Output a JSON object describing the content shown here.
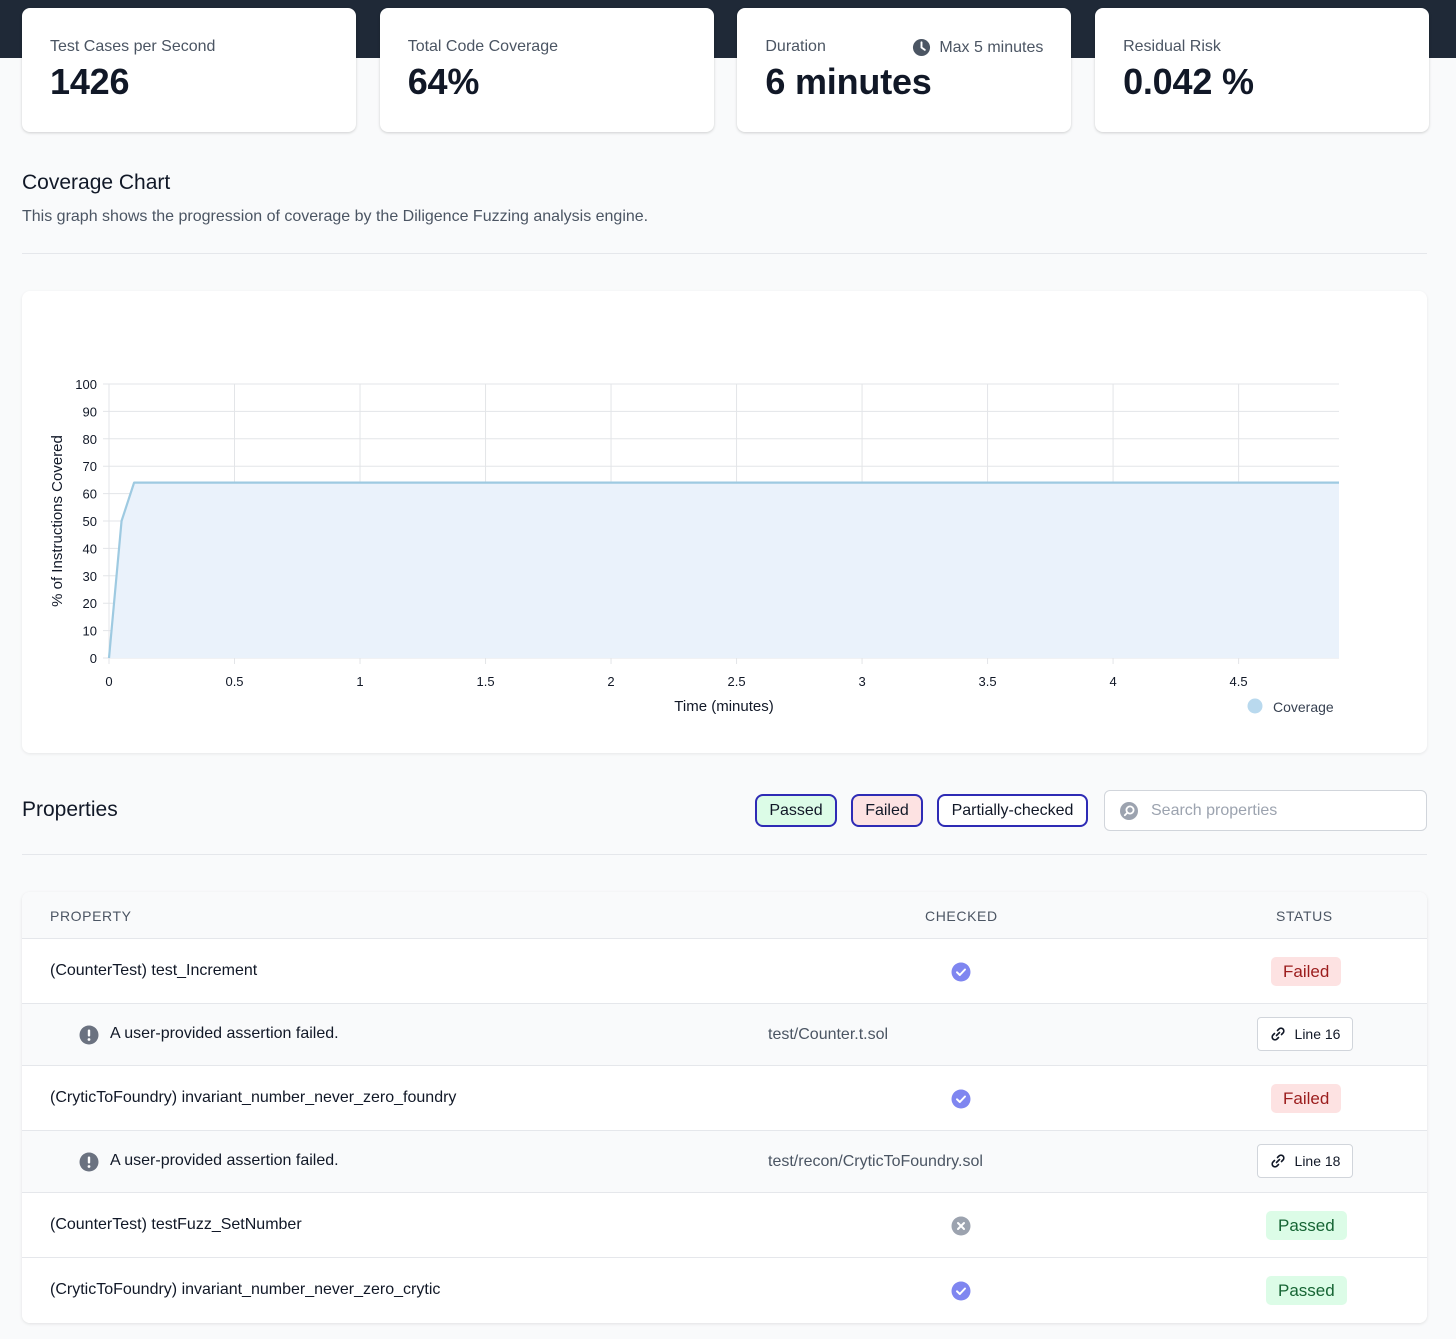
{
  "stats": [
    {
      "label": "Test Cases per Second",
      "value": "1426"
    },
    {
      "label": "Total Code Coverage",
      "value": "64%"
    },
    {
      "label": "Duration",
      "value": "6 minutes",
      "extra": "Max 5 minutes"
    },
    {
      "label": "Residual Risk",
      "value": "0.042 %"
    }
  ],
  "coverage": {
    "title": "Coverage Chart",
    "description": "This graph shows the progression of coverage by the Diligence Fuzzing analysis engine."
  },
  "chart_data": {
    "type": "area",
    "xlabel": "Time (minutes)",
    "ylabel": "% of Instructions Covered",
    "xlim": [
      0,
      4.9
    ],
    "ylim": [
      0,
      100
    ],
    "xticks": [
      0,
      0.5,
      1,
      1.5,
      2,
      2.5,
      3,
      3.5,
      4,
      4.5
    ],
    "yticks": [
      0,
      10,
      20,
      30,
      40,
      50,
      60,
      70,
      80,
      90,
      100
    ],
    "grid": true,
    "legend_position": "bottom-right",
    "series": [
      {
        "name": "Coverage",
        "color": "#9ecae1",
        "fill": "#eaf2fb",
        "x": [
          0,
          0.05,
          0.1,
          4.9
        ],
        "y": [
          0,
          50,
          64,
          64
        ]
      }
    ]
  },
  "properties": {
    "title": "Properties",
    "filters": [
      "Passed",
      "Failed",
      "Partially-checked"
    ],
    "search_placeholder": "Search properties",
    "columns": {
      "property": "PROPERTY",
      "checked": "CHECKED",
      "status": "STATUS"
    },
    "rows": [
      {
        "name": "(CounterTest) test_Increment",
        "checked": true,
        "status": "Failed",
        "detail": {
          "message": "A user-provided assertion failed.",
          "file": "test/Counter.t.sol",
          "line": "Line 16"
        }
      },
      {
        "name": "(CryticToFoundry) invariant_number_never_zero_foundry",
        "checked": true,
        "status": "Failed",
        "detail": {
          "message": "A user-provided assertion failed.",
          "file": "test/recon/CryticToFoundry.sol",
          "line": "Line 18"
        }
      },
      {
        "name": "(CounterTest) testFuzz_SetNumber",
        "checked": false,
        "status": "Passed"
      },
      {
        "name": "(CryticToFoundry) invariant_number_never_zero_crytic",
        "checked": true,
        "status": "Passed"
      }
    ]
  },
  "colors": {
    "header_band": "#1f2937",
    "filter_border": "#2e2bb5",
    "passed_bg": "#dcfce7",
    "failed_bg": "#fde2e2",
    "check_blue": "#7f86f0",
    "unchecked_gray": "#9ca3af"
  }
}
